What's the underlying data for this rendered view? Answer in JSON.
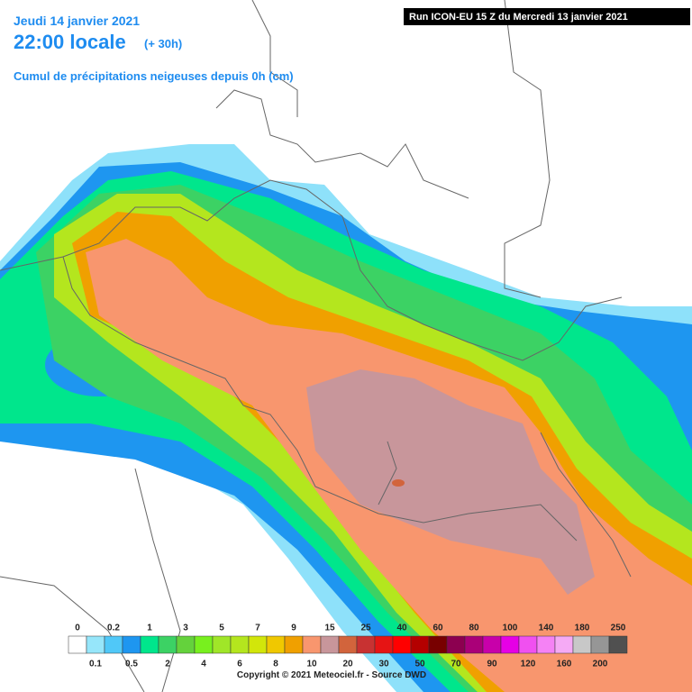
{
  "header": {
    "date": "Jeudi 14 janvier 2021",
    "time": "22:00 locale",
    "offset": "(+ 30h)",
    "field": "Cumul de précipitations neigeuses depuis 0h (cm)",
    "run": "Run ICON-EU 15 Z du Mercredi 13 janvier 2021"
  },
  "legend": {
    "values": [
      0,
      0.1,
      0.2,
      0.5,
      1,
      2,
      3,
      4,
      5,
      6,
      7,
      8,
      9,
      10,
      15,
      20,
      25,
      30,
      40,
      50,
      60,
      70,
      80,
      90,
      100,
      120,
      140,
      160,
      180,
      200,
      250
    ],
    "colors": [
      "#ffffff",
      "#96e6fa",
      "#50c8f8",
      "#1e96f0",
      "#00e68c",
      "#3cd264",
      "#64d23c",
      "#78f01e",
      "#a0e628",
      "#b4e61e",
      "#d2e60a",
      "#f0c800",
      "#f0a000",
      "#f8966e",
      "#c8969b",
      "#d2643c",
      "#c83232",
      "#e61414",
      "#ff0000",
      "#b40000",
      "#780000",
      "#8c0050",
      "#aa0078",
      "#c800aa",
      "#e600e6",
      "#f050f0",
      "#f582f5",
      "#f5aaf5",
      "#c8c8c8",
      "#969696",
      "#505050"
    ]
  },
  "footer": {
    "copyright": "Copyright © 2021 Meteociel.fr - Source DWD"
  }
}
